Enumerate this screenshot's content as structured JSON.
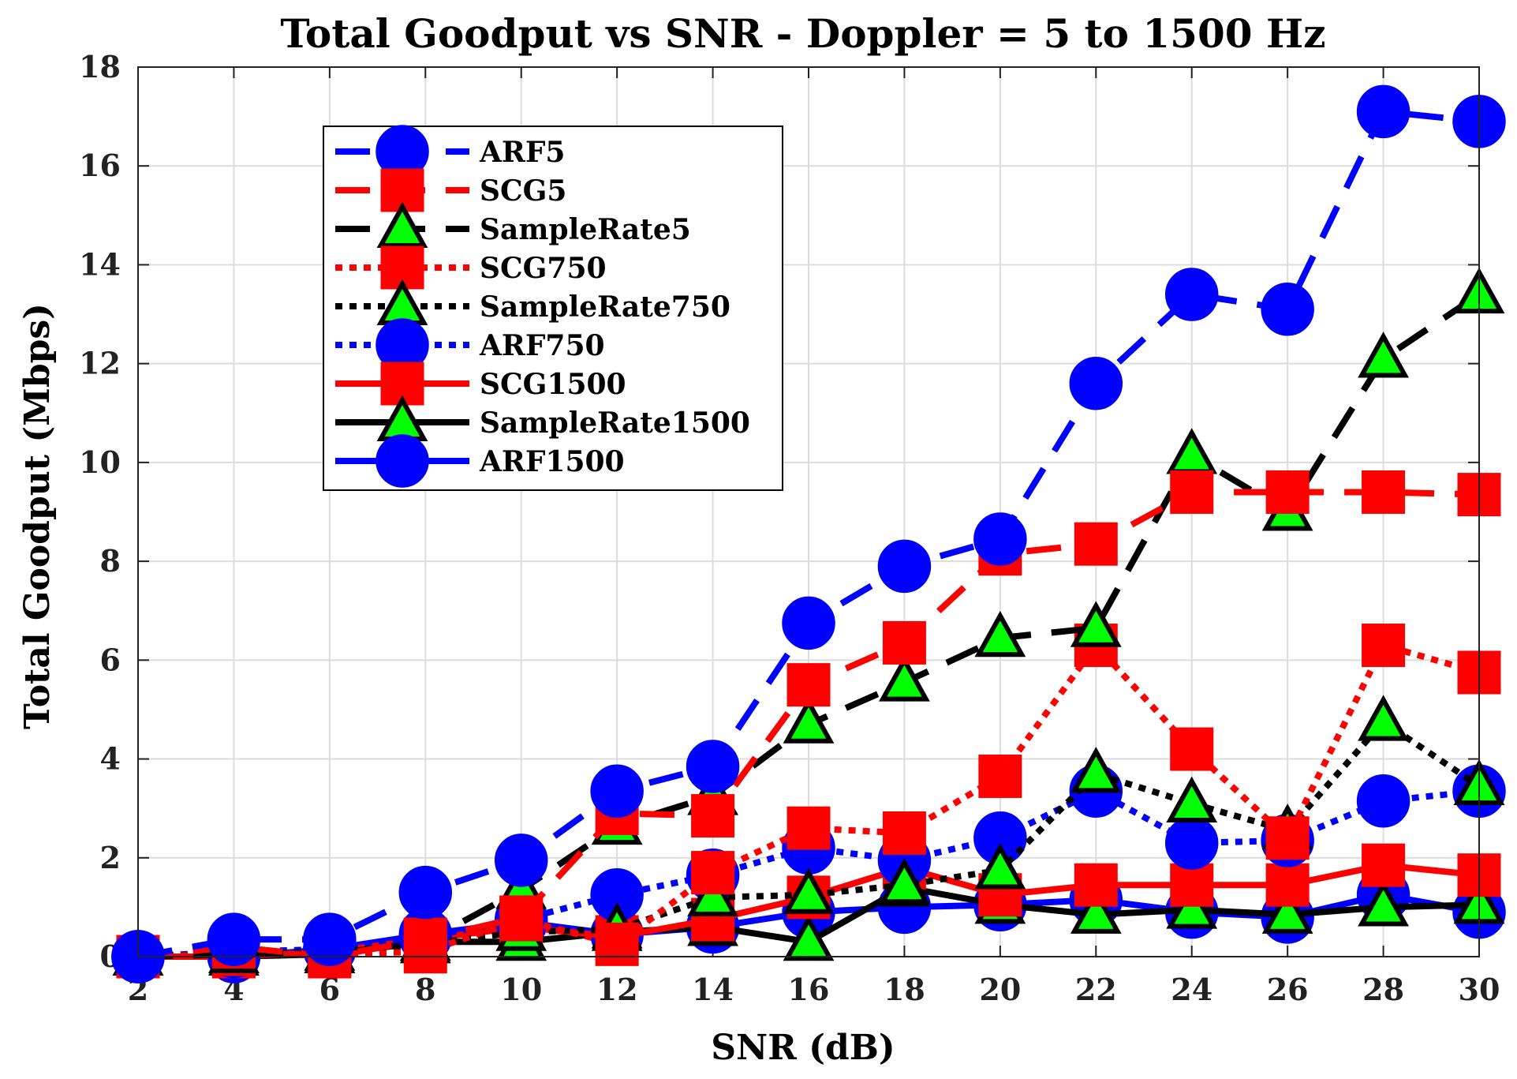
{
  "chart_data": {
    "type": "line",
    "title": "Total Goodput vs SNR - Doppler = 5 to 1500 Hz",
    "xlabel": "SNR (dB)",
    "ylabel": "Total Goodput (Mbps)",
    "xlim": [
      2,
      30
    ],
    "ylim": [
      0,
      18
    ],
    "xticks": [
      2,
      4,
      6,
      8,
      10,
      12,
      14,
      16,
      18,
      20,
      22,
      24,
      26,
      28,
      30
    ],
    "yticks": [
      0,
      2,
      4,
      6,
      8,
      10,
      12,
      14,
      16,
      18
    ],
    "grid": true,
    "legend_position": "top-left",
    "x": [
      2,
      4,
      6,
      8,
      10,
      12,
      14,
      16,
      18,
      20,
      22,
      24,
      26,
      28,
      30
    ],
    "series": [
      {
        "name": "ARF5",
        "color": "#0000ff",
        "line": "dashed",
        "marker": "circle",
        "values": [
          0.0,
          0.35,
          0.35,
          1.3,
          1.95,
          3.35,
          3.85,
          6.75,
          7.9,
          8.45,
          11.6,
          13.4,
          13.1,
          17.1,
          16.9
        ]
      },
      {
        "name": "SCG5",
        "color": "#ff0000",
        "line": "dashed",
        "marker": "square",
        "values": [
          0.0,
          0.2,
          0.0,
          0.35,
          0.8,
          2.9,
          2.85,
          5.5,
          6.35,
          8.15,
          8.35,
          9.4,
          9.4,
          9.4,
          9.35
        ]
      },
      {
        "name": "SampleRate5",
        "color": "#000000",
        "line": "dashed",
        "marker": "triangle",
        "values": [
          0.0,
          0.05,
          0.05,
          0.3,
          1.35,
          2.65,
          3.25,
          4.7,
          5.55,
          6.45,
          6.65,
          10.15,
          9.0,
          12.1,
          13.4
        ]
      },
      {
        "name": "SCG750",
        "color": "#ff0000",
        "line": "dotted",
        "marker": "square",
        "values": [
          0.0,
          0.05,
          0.05,
          0.1,
          0.75,
          0.25,
          1.7,
          2.6,
          2.5,
          3.65,
          6.3,
          4.2,
          2.4,
          6.3,
          5.75
        ]
      },
      {
        "name": "SampleRate750",
        "color": "#000000",
        "line": "dotted",
        "marker": "triangle",
        "values": [
          0.0,
          0.05,
          0.1,
          0.25,
          0.5,
          0.55,
          1.2,
          1.25,
          1.45,
          1.75,
          3.7,
          3.1,
          2.55,
          4.75,
          3.45
        ]
      },
      {
        "name": "ARF750",
        "color": "#0000ff",
        "line": "dotted",
        "marker": "circle",
        "values": [
          0.0,
          0.1,
          0.15,
          0.4,
          0.75,
          1.25,
          1.65,
          2.2,
          1.95,
          2.4,
          3.35,
          2.3,
          2.35,
          3.15,
          3.35
        ]
      },
      {
        "name": "SCG1500",
        "color": "#ff0000",
        "line": "solid",
        "marker": "square",
        "values": [
          0.0,
          0.0,
          0.1,
          0.35,
          0.6,
          0.4,
          0.75,
          1.2,
          1.8,
          1.25,
          1.45,
          1.45,
          1.45,
          1.85,
          1.65
        ]
      },
      {
        "name": "SampleRate1500",
        "color": "#000000",
        "line": "solid",
        "marker": "triangle",
        "values": [
          0.0,
          0.0,
          0.05,
          0.3,
          0.3,
          0.5,
          0.6,
          0.3,
          1.4,
          1.05,
          0.85,
          0.95,
          0.85,
          1.0,
          1.05
        ]
      },
      {
        "name": "ARF1500",
        "color": "#0000ff",
        "line": "solid",
        "marker": "circle",
        "values": [
          0.0,
          0.0,
          0.15,
          0.45,
          0.7,
          0.45,
          0.6,
          0.9,
          1.0,
          1.05,
          1.15,
          0.9,
          0.8,
          1.25,
          0.9
        ]
      }
    ],
    "marker_fill": {
      "circle": "#0000ff",
      "square": "#ff0000",
      "triangle": "#00ff00"
    }
  }
}
